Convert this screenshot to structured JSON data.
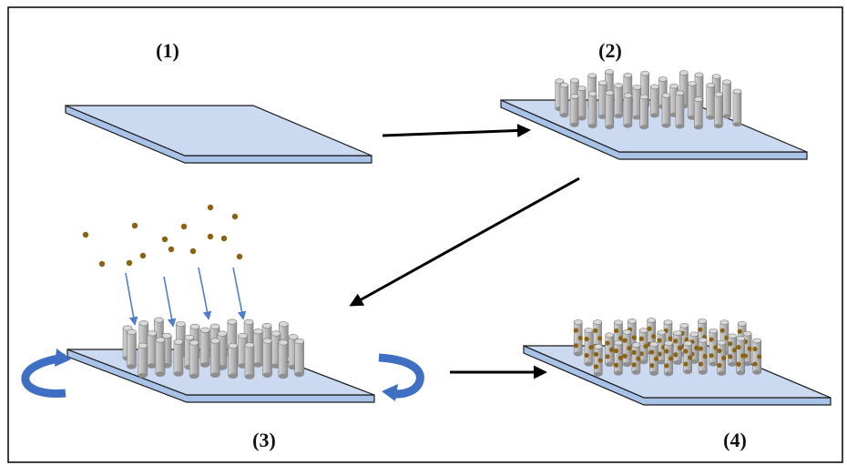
{
  "steps": [
    {
      "label": "(1)"
    },
    {
      "label": "(2)"
    },
    {
      "label": "(3)"
    },
    {
      "label": "(4)"
    }
  ],
  "colors": {
    "substrate_top": "#cbd9f1",
    "substrate_edge": "#a9c2e8",
    "substrate_stroke": "#1a1a1a",
    "rod": "#b9b9b9",
    "rod_shade": "#8e8e8e",
    "particle": "#8a6212",
    "deposition_arrow": "#4f7ecb",
    "rotation_arrow": "#3f6fc2",
    "process_arrow": "#000000",
    "frame": "#000000"
  },
  "icons": [
    "substrate",
    "nanorod",
    "particle",
    "deposition-arrow",
    "rotation-arrow",
    "process-arrow"
  ]
}
